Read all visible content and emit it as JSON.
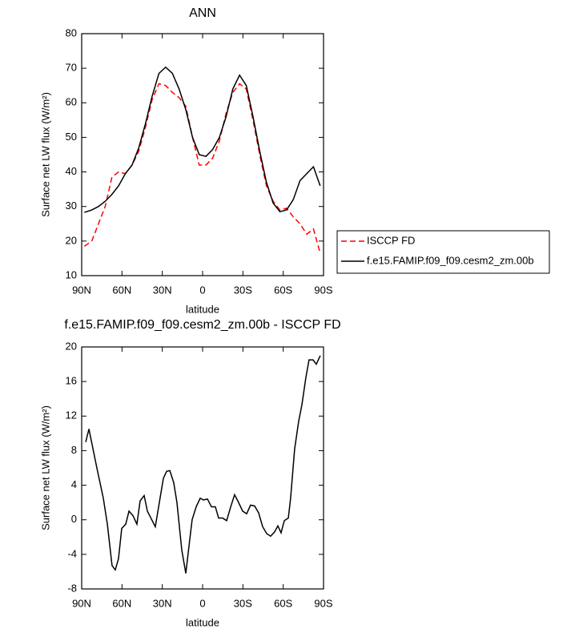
{
  "chart_data": [
    {
      "type": "line",
      "title": "ANN",
      "xlabel": "latitude",
      "ylabel": "Surface net LW flux (W/m²)",
      "x": [
        88,
        82.5,
        77.5,
        72.5,
        67.5,
        62.5,
        57.5,
        52.5,
        47.5,
        42.5,
        37.5,
        32.5,
        27.5,
        22.5,
        17.5,
        12.5,
        7.5,
        2.5,
        -2.5,
        -7.5,
        -12.5,
        -17.5,
        -22.5,
        -27.5,
        -32.5,
        -37.5,
        -42.5,
        -47.5,
        -52.5,
        -57.5,
        -62.5,
        -67.5,
        -72.5,
        -77.5,
        -82.5,
        -87.5
      ],
      "series": [
        {
          "name": "ISCCP FD",
          "color": "#ff0000",
          "line_style": "dashed",
          "values": [
            18.5,
            20,
            25,
            30,
            38.5,
            40,
            39.5,
            42,
            46,
            53,
            61,
            65.5,
            65,
            63,
            61.5,
            59,
            50,
            42,
            42,
            44,
            49,
            57,
            63,
            65.5,
            64,
            55,
            45,
            36,
            31.5,
            29,
            29.5,
            27,
            25,
            22,
            23.5,
            16.5
          ]
        },
        {
          "name": "f.e15.FAMIP.f09_f09.cesm2_zm.00b",
          "color": "#000000",
          "line_style": "solid",
          "values": [
            28.3,
            29,
            30,
            31.5,
            33.5,
            36,
            39.5,
            42,
            47,
            54,
            62,
            68.5,
            70.3,
            68.5,
            64,
            58,
            50,
            45,
            44.5,
            46.5,
            50,
            56,
            64,
            68,
            65,
            56,
            46,
            37,
            31,
            28.5,
            29,
            32,
            37.5,
            39.5,
            41.5,
            36
          ]
        }
      ],
      "xlim": [
        90,
        -90
      ],
      "xticks": [
        {
          "value": 90,
          "label": "90N"
        },
        {
          "value": 60,
          "label": "60N"
        },
        {
          "value": 30,
          "label": "30N"
        },
        0,
        {
          "value": -30,
          "label": "30S"
        },
        {
          "value": -60,
          "label": "60S"
        },
        {
          "value": -90,
          "label": "90S"
        }
      ],
      "ylim": [
        10,
        80
      ],
      "yticks": [
        10,
        20,
        30,
        40,
        50,
        60,
        70,
        80
      ],
      "legend": "right"
    },
    {
      "type": "line",
      "title": "f.e15.FAMIP.f09_f09.cesm2_zm.00b - ISCCP FD",
      "xlabel": "latitude",
      "ylabel": "Surface net LW flux (W/m²)",
      "x": [
        87,
        84.6,
        78.7,
        73.9,
        70.9,
        67.4,
        65,
        62.6,
        60.2,
        57.2,
        54.8,
        51.9,
        48.9,
        46.5,
        43.5,
        41.1,
        35.2,
        32.2,
        29.2,
        26.8,
        24.4,
        21.5,
        19.1,
        15.5,
        12.5,
        10.1,
        7.8,
        4.8,
        1.8,
        -0.6,
        -3.6,
        -6.6,
        -9.5,
        -11.9,
        -14.9,
        -17.9,
        -20.9,
        -23.8,
        -26.8,
        -29.8,
        -32.8,
        -35.7,
        -38.7,
        -41.7,
        -44.7,
        -47.7,
        -50.6,
        -53.6,
        -56,
        -58.4,
        -60.8,
        -63.8,
        -65.5,
        -68.5,
        -71.5,
        -73.9,
        -76.9,
        -79.2,
        -82.2,
        -84.6,
        -87.6
      ],
      "values": [
        9,
        10.5,
        6,
        2.5,
        -0.5,
        -5.3,
        -5.8,
        -4.5,
        -1,
        -0.5,
        1,
        0.5,
        -0.5,
        2.2,
        2.8,
        1,
        -0.8,
        2,
        4.8,
        5.6,
        5.7,
        4.3,
        2,
        -3.5,
        -6.2,
        -3,
        0,
        1.5,
        2.5,
        2.3,
        2.4,
        1.5,
        1.5,
        0.2,
        0.2,
        -0.1,
        1.5,
        2.9,
        2,
        1,
        0.7,
        1.7,
        1.6,
        0.8,
        -0.8,
        -1.6,
        -1.9,
        -1.4,
        -0.7,
        -1.5,
        -0.1,
        0.2,
        2.5,
        8.2,
        11.4,
        13.3,
        16.5,
        18.5,
        18.5,
        18,
        19
      ],
      "color": "#000000",
      "xlim": [
        90,
        -90
      ],
      "xticks": [
        {
          "value": 90,
          "label": "90N"
        },
        {
          "value": 60,
          "label": "60N"
        },
        {
          "value": 30,
          "label": "30N"
        },
        0,
        {
          "value": -30,
          "label": "30S"
        },
        {
          "value": -60,
          "label": "60S"
        },
        {
          "value": -90,
          "label": "90S"
        }
      ],
      "ylim": [
        -8,
        20
      ],
      "yticks": [
        -8,
        -4,
        0,
        4,
        8,
        12,
        16,
        20
      ]
    }
  ]
}
